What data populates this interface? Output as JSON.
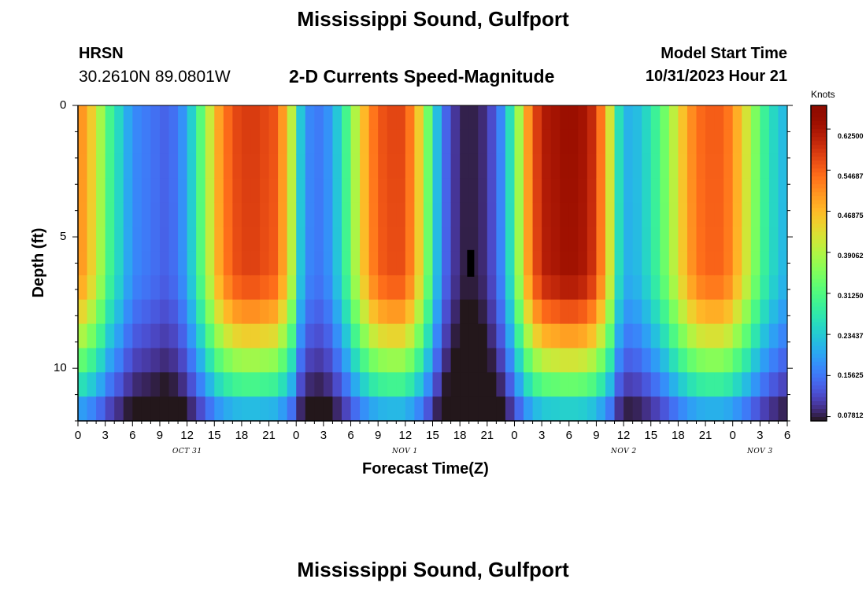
{
  "page_title": "Mississippi Sound, Gulfport",
  "bottom_title": "Mississippi Sound, Gulfport",
  "station": {
    "name": "HRSN",
    "coords": "30.2610N  89.0801W"
  },
  "subtitle": "2-D Currents Speed-Magnitude",
  "model": {
    "label": "Model Start Time",
    "time": "10/31/2023 Hour 21"
  },
  "colorbar": {
    "unit": "Knots",
    "labels": [
      "0.62500",
      "0.54687",
      "0.46875",
      "0.39062",
      "0.31250",
      "0.23437",
      "0.15625",
      "0.07812"
    ],
    "values": [
      0.625,
      0.546875,
      0.46875,
      0.390625,
      0.3125,
      0.234375,
      0.15625,
      0.078125
    ],
    "range": [
      0.07,
      0.67
    ]
  },
  "chart_data": {
    "type": "heatmap",
    "title": "2-D Currents Speed-Magnitude",
    "xlabel": "Forecast Time(Z)",
    "ylabel": "Depth (ft)",
    "x_ticks": [
      "0",
      "3",
      "6",
      "9",
      "12",
      "15",
      "18",
      "21",
      "0",
      "3",
      "6",
      "9",
      "12",
      "15",
      "18",
      "21",
      "0",
      "3",
      "6",
      "9",
      "12",
      "15",
      "18",
      "21",
      "0",
      "3",
      "6"
    ],
    "x_day_labels": [
      "OCT 31",
      "NOV 1",
      "NOV 2",
      "NOV 3"
    ],
    "x_range_hours_since_oct31_00z": [
      0,
      78
    ],
    "y_ticks": [
      "0",
      "5",
      "10"
    ],
    "ylim": [
      0,
      12
    ],
    "y_inverted": true,
    "colorscale": "turbo",
    "surface_speed_knots_by_hour": [
      [
        0,
        0.5
      ],
      [
        1,
        0.45
      ],
      [
        2,
        0.38
      ],
      [
        3,
        0.3
      ],
      [
        4,
        0.25
      ],
      [
        5,
        0.2
      ],
      [
        6,
        0.17
      ],
      [
        7,
        0.16
      ],
      [
        8,
        0.15
      ],
      [
        9,
        0.14
      ],
      [
        10,
        0.15
      ],
      [
        11,
        0.18
      ],
      [
        12,
        0.24
      ],
      [
        13,
        0.32
      ],
      [
        14,
        0.41
      ],
      [
        15,
        0.49
      ],
      [
        16,
        0.54
      ],
      [
        17,
        0.57
      ],
      [
        18,
        0.58
      ],
      [
        19,
        0.58
      ],
      [
        20,
        0.57
      ],
      [
        21,
        0.56
      ],
      [
        22,
        0.5
      ],
      [
        23,
        0.4
      ],
      [
        24,
        0.23
      ],
      [
        25,
        0.17
      ],
      [
        26,
        0.16
      ],
      [
        27,
        0.18
      ],
      [
        28,
        0.23
      ],
      [
        29,
        0.3
      ],
      [
        30,
        0.39
      ],
      [
        31,
        0.47
      ],
      [
        32,
        0.53
      ],
      [
        33,
        0.56
      ],
      [
        34,
        0.57
      ],
      [
        35,
        0.57
      ],
      [
        36,
        0.53
      ],
      [
        37,
        0.45
      ],
      [
        38,
        0.34
      ],
      [
        39,
        0.22
      ],
      [
        40,
        0.14
      ],
      [
        41,
        0.1
      ],
      [
        42,
        0.08
      ],
      [
        43,
        0.08
      ],
      [
        44,
        0.09
      ],
      [
        45,
        0.12
      ],
      [
        46,
        0.17
      ],
      [
        47,
        0.26
      ],
      [
        48,
        0.38
      ],
      [
        49,
        0.5
      ],
      [
        50,
        0.58
      ],
      [
        51,
        0.62
      ],
      [
        52,
        0.63
      ],
      [
        53,
        0.64
      ],
      [
        54,
        0.64
      ],
      [
        55,
        0.63
      ],
      [
        56,
        0.6
      ],
      [
        57,
        0.53
      ],
      [
        58,
        0.42
      ],
      [
        59,
        0.26
      ],
      [
        60,
        0.21
      ],
      [
        61,
        0.22
      ],
      [
        62,
        0.25
      ],
      [
        63,
        0.29
      ],
      [
        64,
        0.34
      ],
      [
        65,
        0.4
      ],
      [
        66,
        0.46
      ],
      [
        67,
        0.51
      ],
      [
        68,
        0.54
      ],
      [
        69,
        0.55
      ],
      [
        70,
        0.55
      ],
      [
        71,
        0.53
      ],
      [
        72,
        0.48
      ],
      [
        73,
        0.42
      ],
      [
        74,
        0.35
      ],
      [
        75,
        0.29
      ],
      [
        76,
        0.25
      ],
      [
        77,
        0.22
      ],
      [
        78,
        0.21
      ]
    ],
    "depth_levels_ft": [
      0,
      1,
      2,
      3,
      4,
      5,
      6,
      7,
      8,
      9,
      10,
      11,
      12
    ]
  },
  "x_ticks_display": [
    "0",
    "3",
    "6",
    "9",
    "12",
    "15",
    "18",
    "21",
    "0",
    "3",
    "6",
    "9",
    "12",
    "15",
    "18",
    "21",
    "0",
    "3",
    "6",
    "9",
    "12",
    "15",
    "18",
    "21",
    "0",
    "3",
    "6"
  ]
}
